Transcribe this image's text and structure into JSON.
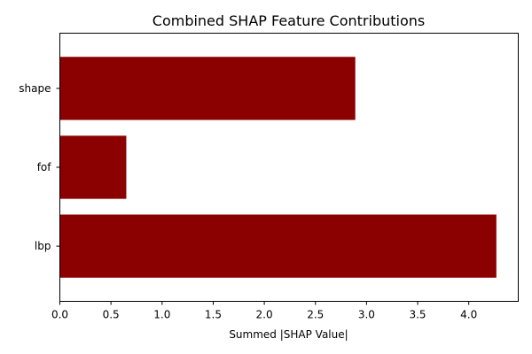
{
  "chart_data": {
    "type": "bar",
    "orientation": "horizontal",
    "title": "Combined SHAP Feature Contributions",
    "xlabel": "Summed |SHAP Value|",
    "ylabel": "",
    "categories": [
      "shape",
      "fof",
      "lbp"
    ],
    "values": [
      2.89,
      0.65,
      4.27
    ],
    "xlim": [
      0,
      4.484
    ],
    "xticks": [
      "0.0",
      "0.5",
      "1.0",
      "1.5",
      "2.0",
      "2.5",
      "3.0",
      "3.5",
      "4.0"
    ],
    "bar_color": "#8b0000",
    "grid": false,
    "legend": "none"
  }
}
